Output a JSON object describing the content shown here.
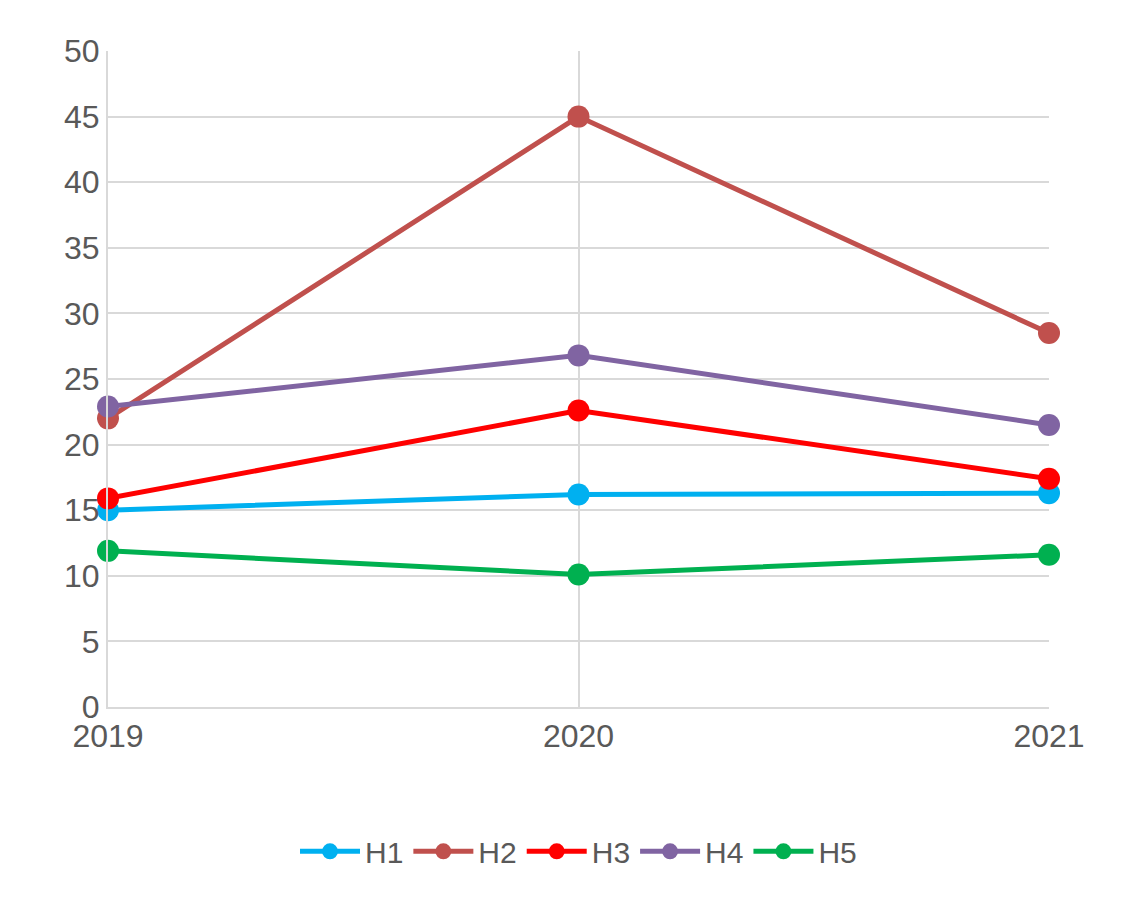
{
  "chart_data": {
    "type": "line",
    "x": [
      2019,
      2020,
      2021
    ],
    "series": [
      {
        "name": "H1",
        "color": "#00b0f0",
        "values": [
          15.0,
          16.2,
          16.3
        ]
      },
      {
        "name": "H2",
        "color": "#c0504d",
        "values": [
          22.0,
          45.0,
          28.5
        ]
      },
      {
        "name": "H3",
        "color": "#ff0000",
        "values": [
          15.9,
          22.6,
          17.4
        ]
      },
      {
        "name": "H4",
        "color": "#8064a2",
        "values": [
          22.9,
          26.8,
          21.5
        ]
      },
      {
        "name": "H5",
        "color": "#00b050",
        "values": [
          11.9,
          10.1,
          11.6
        ]
      }
    ],
    "xlim": [
      2019,
      2021
    ],
    "xticks": [
      2019,
      2020,
      2021
    ],
    "ylim": [
      0,
      50
    ],
    "yticks": [
      0,
      5,
      10,
      15,
      20,
      25,
      30,
      35,
      40,
      45,
      50
    ],
    "grid": true,
    "legend": "bottom",
    "marker": "circle"
  }
}
